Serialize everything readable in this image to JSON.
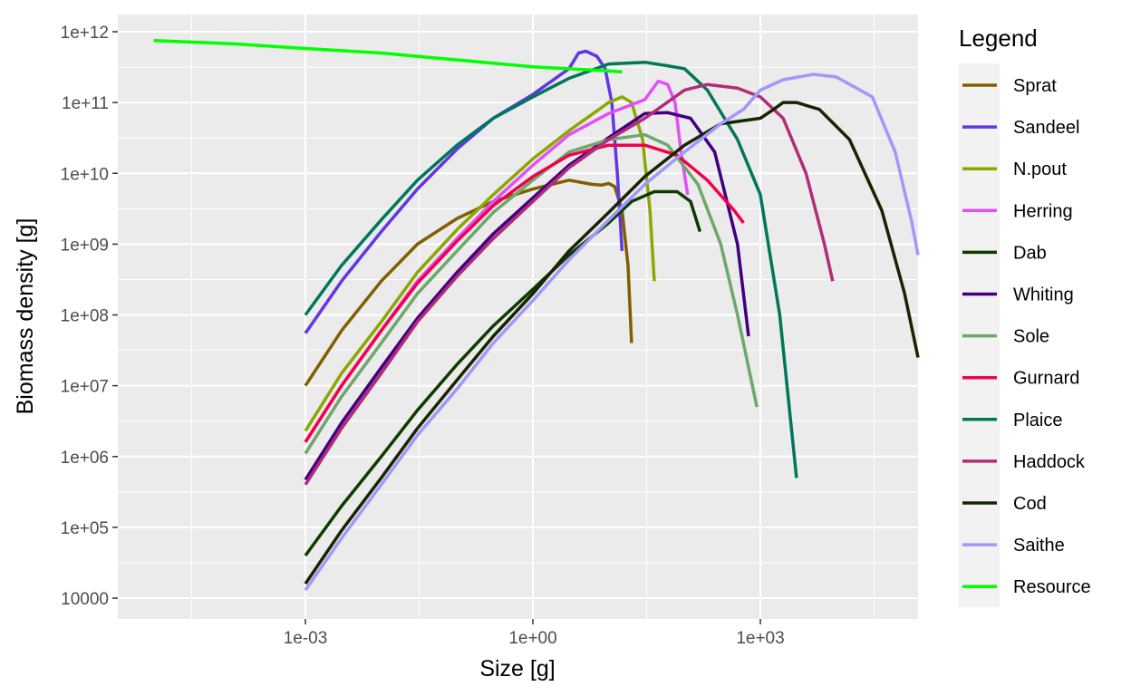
{
  "chart_data": {
    "type": "line",
    "xlabel": "Size [g]",
    "ylabel": "Biomass density [g]",
    "x_scale": "log10",
    "y_scale": "log10",
    "xlim": [
      1e-06,
      100000
    ],
    "ylim": [
      4000,
      1500000000000.0
    ],
    "grid": true,
    "x_ticks": [
      {
        "value": 0.001,
        "label": "1e-03"
      },
      {
        "value": 1,
        "label": "1e+00"
      },
      {
        "value": 1000,
        "label": "1e+03"
      }
    ],
    "y_ticks": [
      {
        "value": 10000,
        "label": "10000"
      },
      {
        "value": 100000,
        "label": "1e+05"
      },
      {
        "value": 1000000,
        "label": "1e+06"
      },
      {
        "value": 10000000,
        "label": "1e+07"
      },
      {
        "value": 100000000,
        "label": "1e+08"
      },
      {
        "value": 1000000000,
        "label": "1e+09"
      },
      {
        "value": 10000000000,
        "label": "1e+10"
      },
      {
        "value": 100000000000,
        "label": "1e+11"
      },
      {
        "value": 1000000000000,
        "label": "1e+12"
      }
    ],
    "legend": {
      "title": "Legend",
      "position": "right"
    },
    "series": [
      {
        "name": "Sprat",
        "color": "#815f00",
        "points": [
          [
            0.001,
            10000000.0
          ],
          [
            0.003,
            60000000.0
          ],
          [
            0.01,
            300000000.0
          ],
          [
            0.03,
            1000000000.0
          ],
          [
            0.1,
            2300000000.0
          ],
          [
            0.3,
            4000000000.0
          ],
          [
            1,
            6000000000.0
          ],
          [
            3,
            8000000000.0
          ],
          [
            6,
            7000000000.0
          ],
          [
            8,
            6800000000.0
          ],
          [
            10,
            7200000000.0
          ],
          [
            12,
            6500000000.0
          ],
          [
            15,
            3000000000.0
          ],
          [
            18,
            500000000.0
          ],
          [
            20,
            40000000.0
          ]
        ]
      },
      {
        "name": "Sandeel",
        "color": "#6237e2",
        "points": [
          [
            0.001,
            55000000.0
          ],
          [
            0.003,
            300000000.0
          ],
          [
            0.01,
            1500000000.0
          ],
          [
            0.03,
            6000000000.0
          ],
          [
            0.1,
            22000000000.0
          ],
          [
            0.3,
            60000000000.0
          ],
          [
            1,
            130000000000.0
          ],
          [
            3,
            300000000000.0
          ],
          [
            4,
            500000000000.0
          ],
          [
            5,
            530000000000.0
          ],
          [
            7,
            450000000000.0
          ],
          [
            9,
            300000000000.0
          ],
          [
            11,
            100000000000.0
          ],
          [
            13,
            10000000000.0
          ],
          [
            15,
            800000000.0
          ]
        ]
      },
      {
        "name": "N.pout",
        "color": "#8da600",
        "points": [
          [
            0.001,
            2300000.0
          ],
          [
            0.003,
            15000000.0
          ],
          [
            0.01,
            80000000.0
          ],
          [
            0.03,
            400000000.0
          ],
          [
            0.1,
            1600000000.0
          ],
          [
            0.3,
            5000000000.0
          ],
          [
            1,
            16000000000.0
          ],
          [
            3,
            40000000000.0
          ],
          [
            10,
            100000000000.0
          ],
          [
            15,
            120000000000.0
          ],
          [
            20,
            100000000000.0
          ],
          [
            28,
            30000000000.0
          ],
          [
            35,
            3000000000.0
          ],
          [
            40,
            300000000.0
          ]
        ]
      },
      {
        "name": "Herring",
        "color": "#e44ef9",
        "points": [
          [
            0.001,
            1600000.0
          ],
          [
            0.003,
            10000000.0
          ],
          [
            0.01,
            60000000.0
          ],
          [
            0.03,
            300000000.0
          ],
          [
            0.1,
            1200000000.0
          ],
          [
            0.3,
            4000000000.0
          ],
          [
            1,
            13000000000.0
          ],
          [
            3,
            35000000000.0
          ],
          [
            10,
            70000000000.0
          ],
          [
            30,
            110000000000.0
          ],
          [
            45,
            200000000000.0
          ],
          [
            60,
            180000000000.0
          ],
          [
            75,
            100000000000.0
          ],
          [
            90,
            20000000000.0
          ],
          [
            110,
            5000000000.0
          ]
        ]
      },
      {
        "name": "Dab",
        "color": "#0e3c00",
        "points": [
          [
            0.001,
            40000.0
          ],
          [
            0.003,
            200000.0
          ],
          [
            0.01,
            1000000.0
          ],
          [
            0.03,
            4500000.0
          ],
          [
            0.1,
            20000000.0
          ],
          [
            0.3,
            70000000.0
          ],
          [
            1,
            230000000.0
          ],
          [
            3,
            700000000.0
          ],
          [
            10,
            2000000000.0
          ],
          [
            20,
            4000000000.0
          ],
          [
            40,
            5500000000.0
          ],
          [
            80,
            5500000000.0
          ],
          [
            120,
            4000000000.0
          ],
          [
            160,
            1500000000.0
          ]
        ]
      },
      {
        "name": "Whiting",
        "color": "#41007f",
        "points": [
          [
            0.001,
            470000.0
          ],
          [
            0.003,
            3000000.0
          ],
          [
            0.01,
            18000000.0
          ],
          [
            0.03,
            90000000.0
          ],
          [
            0.1,
            400000000.0
          ],
          [
            0.3,
            1400000000.0
          ],
          [
            1,
            4500000000.0
          ],
          [
            3,
            13000000000.0
          ],
          [
            10,
            32000000000.0
          ],
          [
            30,
            70000000000.0
          ],
          [
            60,
            72000000000.0
          ],
          [
            120,
            60000000000.0
          ],
          [
            250,
            20000000000.0
          ],
          [
            500,
            1000000000.0
          ],
          [
            700,
            50000000.0
          ]
        ]
      },
      {
        "name": "Sole",
        "color": "#6ba86c",
        "points": [
          [
            0.001,
            1100000.0
          ],
          [
            0.003,
            7000000.0
          ],
          [
            0.01,
            40000000.0
          ],
          [
            0.03,
            200000000.0
          ],
          [
            0.1,
            800000000.0
          ],
          [
            0.3,
            2800000000.0
          ],
          [
            1,
            8000000000.0
          ],
          [
            3,
            20000000000.0
          ],
          [
            10,
            30000000000.0
          ],
          [
            30,
            35000000000.0
          ],
          [
            60,
            25000000000.0
          ],
          [
            150,
            7000000000.0
          ],
          [
            300,
            1000000000.0
          ],
          [
            500,
            100000000.0
          ],
          [
            900,
            5000000.0
          ]
        ]
      },
      {
        "name": "Gurnard",
        "color": "#f2004f",
        "points": [
          [
            0.001,
            1600000.0
          ],
          [
            0.003,
            10000000.0
          ],
          [
            0.01,
            60000000.0
          ],
          [
            0.03,
            280000000.0
          ],
          [
            0.1,
            1100000000.0
          ],
          [
            0.3,
            3500000000.0
          ],
          [
            1,
            9000000000.0
          ],
          [
            3,
            18000000000.0
          ],
          [
            10,
            25000000000.0
          ],
          [
            30,
            25000000000.0
          ],
          [
            80,
            18000000000.0
          ],
          [
            200,
            8000000000.0
          ],
          [
            450,
            3000000000.0
          ],
          [
            600,
            2000000000.0
          ]
        ]
      },
      {
        "name": "Plaice",
        "color": "#00765b",
        "points": [
          [
            0.001,
            100000000.0
          ],
          [
            0.003,
            500000000.0
          ],
          [
            0.01,
            2200000000.0
          ],
          [
            0.03,
            8000000000.0
          ],
          [
            0.1,
            25000000000.0
          ],
          [
            0.3,
            60000000000.0
          ],
          [
            1,
            120000000000.0
          ],
          [
            3,
            220000000000.0
          ],
          [
            10,
            350000000000.0
          ],
          [
            30,
            370000000000.0
          ],
          [
            60,
            330000000000.0
          ],
          [
            100,
            300000000000.0
          ],
          [
            200,
            150000000000.0
          ],
          [
            500,
            30000000000.0
          ],
          [
            1000,
            5000000000.0
          ],
          [
            1800,
            100000000.0
          ],
          [
            3000,
            500000.0
          ]
        ]
      },
      {
        "name": "Haddock",
        "color": "#b22c79",
        "points": [
          [
            0.001,
            400000.0
          ],
          [
            0.003,
            2500000.0
          ],
          [
            0.01,
            15000000.0
          ],
          [
            0.03,
            80000000.0
          ],
          [
            0.1,
            350000000.0
          ],
          [
            0.3,
            1200000000.0
          ],
          [
            1,
            4000000000.0
          ],
          [
            3,
            12000000000.0
          ],
          [
            10,
            30000000000.0
          ],
          [
            30,
            60000000000.0
          ],
          [
            100,
            150000000000.0
          ],
          [
            200,
            180000000000.0
          ],
          [
            500,
            160000000000.0
          ],
          [
            1000,
            120000000000.0
          ],
          [
            2000,
            60000000000.0
          ],
          [
            4000,
            10000000000.0
          ],
          [
            7000,
            1000000000.0
          ],
          [
            9000,
            300000000.0
          ]
        ]
      },
      {
        "name": "Cod",
        "color": "#172500",
        "points": [
          [
            0.001,
            16000.0
          ],
          [
            0.003,
            90000.0
          ],
          [
            0.01,
            500000.0
          ],
          [
            0.03,
            2500000.0
          ],
          [
            0.1,
            12000000.0
          ],
          [
            0.3,
            50000000.0
          ],
          [
            1,
            200000000.0
          ],
          [
            3,
            800000000.0
          ],
          [
            10,
            2800000000.0
          ],
          [
            30,
            9000000000.0
          ],
          [
            100,
            25000000000.0
          ],
          [
            300,
            50000000000.0
          ],
          [
            1000,
            60000000000.0
          ],
          [
            1500,
            80000000000.0
          ],
          [
            2000,
            100000000000.0
          ],
          [
            3000,
            100000000000.0
          ],
          [
            6000,
            80000000000.0
          ],
          [
            15000,
            30000000000.0
          ],
          [
            40000,
            3000000000.0
          ],
          [
            80000,
            200000000.0
          ],
          [
            120000,
            25000000.0
          ]
        ]
      },
      {
        "name": "Saithe",
        "color": "#a099f9",
        "points": [
          [
            0.001,
            13000.0
          ],
          [
            0.003,
            70000.0
          ],
          [
            0.01,
            400000.0
          ],
          [
            0.03,
            2000000.0
          ],
          [
            0.1,
            9000000.0
          ],
          [
            0.3,
            40000000.0
          ],
          [
            1,
            160000000.0
          ],
          [
            3,
            600000000.0
          ],
          [
            10,
            2200000000.0
          ],
          [
            30,
            7000000000.0
          ],
          [
            100,
            20000000000.0
          ],
          [
            300,
            50000000000.0
          ],
          [
            600,
            80000000000.0
          ],
          [
            1000,
            150000000000.0
          ],
          [
            2000,
            210000000000.0
          ],
          [
            5000,
            250000000000.0
          ],
          [
            10000,
            230000000000.0
          ],
          [
            30000,
            120000000000.0
          ],
          [
            60000,
            20000000000.0
          ],
          [
            100000,
            2000000000.0
          ],
          [
            120000,
            700000000.0
          ]
        ]
      },
      {
        "name": "Resource",
        "color": "#00ff00",
        "points": [
          [
            1e-05,
            750000000000.0
          ],
          [
            0.0001,
            680000000000.0
          ],
          [
            0.001,
            580000000000.0
          ],
          [
            0.01,
            500000000000.0
          ],
          [
            0.1,
            400000000000.0
          ],
          [
            1,
            320000000000.0
          ],
          [
            10,
            280000000000.0
          ],
          [
            15,
            270000000000.0
          ]
        ]
      }
    ]
  }
}
